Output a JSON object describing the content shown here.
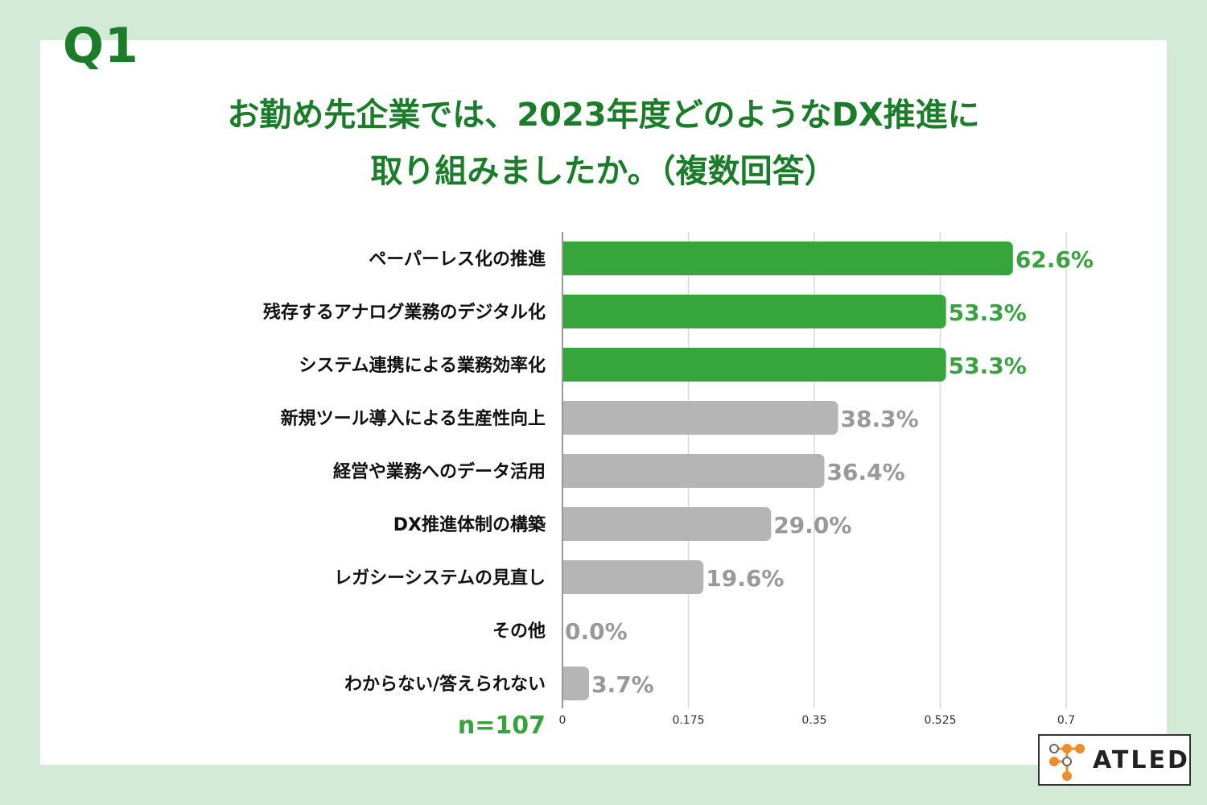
{
  "header": {
    "question_label": "Q1",
    "title_line1": "お勤め先企業では、2023年度どのようなDX推進に",
    "title_line2": "取り組みましたか。（複数回答）"
  },
  "sample_size": "n=107",
  "logo": {
    "text": "ATLED",
    "icon": "network-nodes-icon"
  },
  "colors": {
    "background": "#d3ead6",
    "title": "#1b7d2a",
    "highlight_bar": "#36a53c",
    "other_bar": "#b5b5b5",
    "highlight_label": "#3aa141",
    "other_label": "#999999"
  },
  "chart_data": {
    "type": "bar",
    "orientation": "horizontal",
    "categories": [
      "ペーパーレス化の推進",
      "残存するアナログ業務のデジタル化",
      "システム連携による業務効率化",
      "新規ツール導入による生産性向上",
      "経営や業務へのデータ活用",
      "DX推進体制の構築",
      "レガシーシステムの見直し",
      "その他",
      "わからない/答えられない"
    ],
    "values": [
      0.626,
      0.533,
      0.533,
      0.383,
      0.364,
      0.29,
      0.196,
      0.0,
      0.037
    ],
    "value_labels": [
      "62.6%",
      "53.3%",
      "53.3%",
      "38.3%",
      "36.4%",
      "29.0%",
      "19.6%",
      "0.0%",
      "3.7%"
    ],
    "highlighted": [
      true,
      true,
      true,
      false,
      false,
      false,
      false,
      false,
      false
    ],
    "xlim": [
      0,
      0.7
    ],
    "xticks": [
      "0",
      "0.175",
      "0.35",
      "0.525",
      "0.7"
    ],
    "xtick_values": [
      0,
      0.175,
      0.35,
      0.525,
      0.7
    ],
    "grid": "vertical",
    "title": "",
    "xlabel": "",
    "ylabel": ""
  }
}
